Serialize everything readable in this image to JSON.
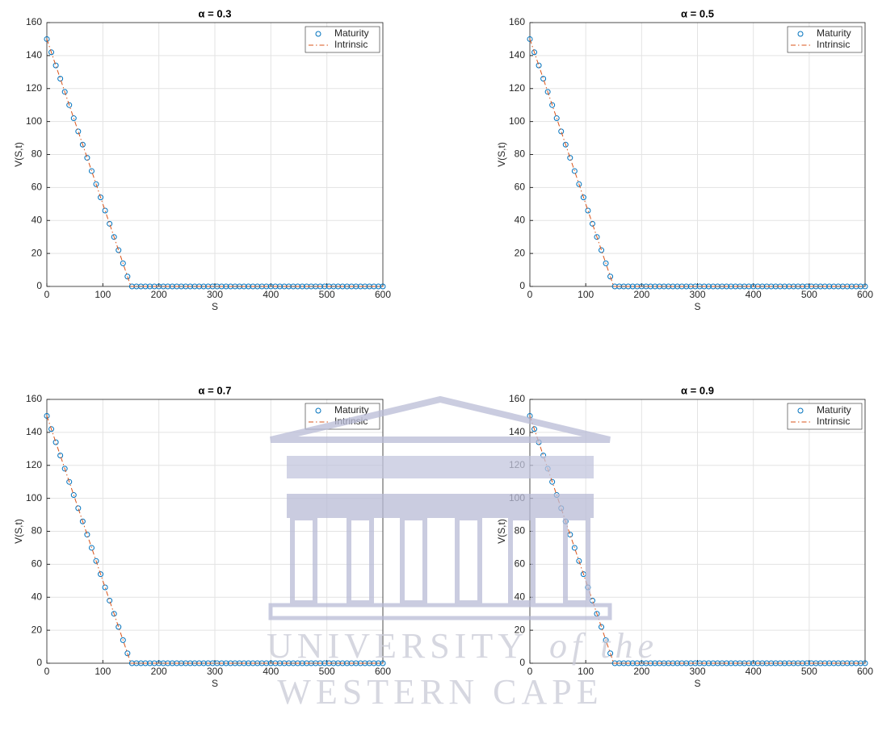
{
  "chart_data": [
    {
      "type": "line",
      "title": "α = 0.3",
      "xlabel": "S",
      "ylabel": "V(S,t)",
      "xlim": [
        0,
        600
      ],
      "ylim": [
        0,
        160
      ],
      "xticks": [
        0,
        100,
        200,
        300,
        400,
        500,
        600
      ],
      "yticks": [
        0,
        20,
        40,
        60,
        80,
        100,
        120,
        140,
        160
      ],
      "grid": true,
      "legend": "upper right",
      "series": [
        {
          "name": "Maturity",
          "color": "#0072bd",
          "marker": "circle",
          "x": [
            0,
            8,
            16,
            24,
            32,
            40,
            48,
            56,
            64,
            72,
            80,
            88,
            96,
            104,
            112,
            120,
            128,
            136,
            144,
            152,
            160,
            168,
            176,
            184,
            192,
            200,
            208,
            216,
            224,
            232,
            240,
            248,
            256,
            264,
            272,
            280,
            288,
            296,
            304,
            312,
            320,
            328,
            336,
            344,
            352,
            360,
            368,
            376,
            384,
            392,
            400,
            408,
            416,
            424,
            432,
            440,
            448,
            456,
            464,
            472,
            480,
            488,
            496,
            504,
            512,
            520,
            528,
            536,
            544,
            552,
            560,
            568,
            576,
            584,
            592,
            600
          ],
          "values": [
            150,
            142,
            134,
            126,
            118,
            110,
            102,
            94,
            86,
            78,
            70,
            62,
            54,
            46,
            38,
            30,
            22,
            14,
            6,
            0,
            0,
            0,
            0,
            0,
            0,
            0,
            0,
            0,
            0,
            0,
            0,
            0,
            0,
            0,
            0,
            0,
            0,
            0,
            0,
            0,
            0,
            0,
            0,
            0,
            0,
            0,
            0,
            0,
            0,
            0,
            0,
            0,
            0,
            0,
            0,
            0,
            0,
            0,
            0,
            0,
            0,
            0,
            0,
            0,
            0,
            0,
            0,
            0,
            0,
            0,
            0,
            0,
            0,
            0,
            0,
            0
          ]
        },
        {
          "name": "Intrinsic",
          "color": "#d95319",
          "linestyle": "dash-dot",
          "x": [
            0,
            150,
            600
          ],
          "values": [
            150,
            0,
            0
          ]
        }
      ]
    },
    {
      "type": "line",
      "title": "α = 0.5",
      "xlabel": "S",
      "ylabel": "V(S,t)",
      "xlim": [
        0,
        600
      ],
      "ylim": [
        0,
        160
      ],
      "xticks": [
        0,
        100,
        200,
        300,
        400,
        500,
        600
      ],
      "yticks": [
        0,
        20,
        40,
        60,
        80,
        100,
        120,
        140,
        160
      ],
      "grid": true,
      "legend": "upper right",
      "series": [
        {
          "name": "Maturity",
          "color": "#0072bd",
          "marker": "circle",
          "x": [
            0,
            8,
            16,
            24,
            32,
            40,
            48,
            56,
            64,
            72,
            80,
            88,
            96,
            104,
            112,
            120,
            128,
            136,
            144,
            152,
            160,
            168,
            176,
            184,
            192,
            200,
            208,
            216,
            224,
            232,
            240,
            248,
            256,
            264,
            272,
            280,
            288,
            296,
            304,
            312,
            320,
            328,
            336,
            344,
            352,
            360,
            368,
            376,
            384,
            392,
            400,
            408,
            416,
            424,
            432,
            440,
            448,
            456,
            464,
            472,
            480,
            488,
            496,
            504,
            512,
            520,
            528,
            536,
            544,
            552,
            560,
            568,
            576,
            584,
            592,
            600
          ],
          "values": [
            150,
            142,
            134,
            126,
            118,
            110,
            102,
            94,
            86,
            78,
            70,
            62,
            54,
            46,
            38,
            30,
            22,
            14,
            6,
            0,
            0,
            0,
            0,
            0,
            0,
            0,
            0,
            0,
            0,
            0,
            0,
            0,
            0,
            0,
            0,
            0,
            0,
            0,
            0,
            0,
            0,
            0,
            0,
            0,
            0,
            0,
            0,
            0,
            0,
            0,
            0,
            0,
            0,
            0,
            0,
            0,
            0,
            0,
            0,
            0,
            0,
            0,
            0,
            0,
            0,
            0,
            0,
            0,
            0,
            0,
            0,
            0,
            0,
            0,
            0,
            0
          ]
        },
        {
          "name": "Intrinsic",
          "color": "#d95319",
          "linestyle": "dash-dot",
          "x": [
            0,
            150,
            600
          ],
          "values": [
            150,
            0,
            0
          ]
        }
      ]
    },
    {
      "type": "line",
      "title": "α = 0.7",
      "xlabel": "S",
      "ylabel": "V(S,t)",
      "xlim": [
        0,
        600
      ],
      "ylim": [
        0,
        160
      ],
      "xticks": [
        0,
        100,
        200,
        300,
        400,
        500,
        600
      ],
      "yticks": [
        0,
        20,
        40,
        60,
        80,
        100,
        120,
        140,
        160
      ],
      "grid": true,
      "legend": "upper right",
      "series": [
        {
          "name": "Maturity",
          "color": "#0072bd",
          "marker": "circle",
          "x": [
            0,
            8,
            16,
            24,
            32,
            40,
            48,
            56,
            64,
            72,
            80,
            88,
            96,
            104,
            112,
            120,
            128,
            136,
            144,
            152,
            160,
            168,
            176,
            184,
            192,
            200,
            208,
            216,
            224,
            232,
            240,
            248,
            256,
            264,
            272,
            280,
            288,
            296,
            304,
            312,
            320,
            328,
            336,
            344,
            352,
            360,
            368,
            376,
            384,
            392,
            400,
            408,
            416,
            424,
            432,
            440,
            448,
            456,
            464,
            472,
            480,
            488,
            496,
            504,
            512,
            520,
            528,
            536,
            544,
            552,
            560,
            568,
            576,
            584,
            592,
            600
          ],
          "values": [
            150,
            142,
            134,
            126,
            118,
            110,
            102,
            94,
            86,
            78,
            70,
            62,
            54,
            46,
            38,
            30,
            22,
            14,
            6,
            0,
            0,
            0,
            0,
            0,
            0,
            0,
            0,
            0,
            0,
            0,
            0,
            0,
            0,
            0,
            0,
            0,
            0,
            0,
            0,
            0,
            0,
            0,
            0,
            0,
            0,
            0,
            0,
            0,
            0,
            0,
            0,
            0,
            0,
            0,
            0,
            0,
            0,
            0,
            0,
            0,
            0,
            0,
            0,
            0,
            0,
            0,
            0,
            0,
            0,
            0,
            0,
            0,
            0,
            0,
            0,
            0
          ]
        },
        {
          "name": "Intrinsic",
          "color": "#d95319",
          "linestyle": "dash-dot",
          "x": [
            0,
            150,
            600
          ],
          "values": [
            150,
            0,
            0
          ]
        }
      ]
    },
    {
      "type": "line",
      "title": "α = 0.9",
      "xlabel": "S",
      "ylabel": "V(S,t)",
      "xlim": [
        0,
        600
      ],
      "ylim": [
        0,
        160
      ],
      "xticks": [
        0,
        100,
        200,
        300,
        400,
        500,
        600
      ],
      "yticks": [
        0,
        20,
        40,
        60,
        80,
        100,
        120,
        140,
        160
      ],
      "grid": true,
      "legend": "upper right",
      "series": [
        {
          "name": "Maturity",
          "color": "#0072bd",
          "marker": "circle",
          "x": [
            0,
            8,
            16,
            24,
            32,
            40,
            48,
            56,
            64,
            72,
            80,
            88,
            96,
            104,
            112,
            120,
            128,
            136,
            144,
            152,
            160,
            168,
            176,
            184,
            192,
            200,
            208,
            216,
            224,
            232,
            240,
            248,
            256,
            264,
            272,
            280,
            288,
            296,
            304,
            312,
            320,
            328,
            336,
            344,
            352,
            360,
            368,
            376,
            384,
            392,
            400,
            408,
            416,
            424,
            432,
            440,
            448,
            456,
            464,
            472,
            480,
            488,
            496,
            504,
            512,
            520,
            528,
            536,
            544,
            552,
            560,
            568,
            576,
            584,
            592,
            600
          ],
          "values": [
            150,
            142,
            134,
            126,
            118,
            110,
            102,
            94,
            86,
            78,
            70,
            62,
            54,
            46,
            38,
            30,
            22,
            14,
            6,
            0,
            0,
            0,
            0,
            0,
            0,
            0,
            0,
            0,
            0,
            0,
            0,
            0,
            0,
            0,
            0,
            0,
            0,
            0,
            0,
            0,
            0,
            0,
            0,
            0,
            0,
            0,
            0,
            0,
            0,
            0,
            0,
            0,
            0,
            0,
            0,
            0,
            0,
            0,
            0,
            0,
            0,
            0,
            0,
            0,
            0,
            0,
            0,
            0,
            0,
            0,
            0,
            0,
            0,
            0,
            0,
            0
          ]
        },
        {
          "name": "Intrinsic",
          "color": "#d95319",
          "linestyle": "dash-dot",
          "x": [
            0,
            150,
            600
          ],
          "values": [
            150,
            0,
            0
          ]
        }
      ]
    }
  ],
  "watermark": {
    "word1": "UNIVERSITY",
    "word2": "of the",
    "line2": "WESTERN CAPE"
  }
}
